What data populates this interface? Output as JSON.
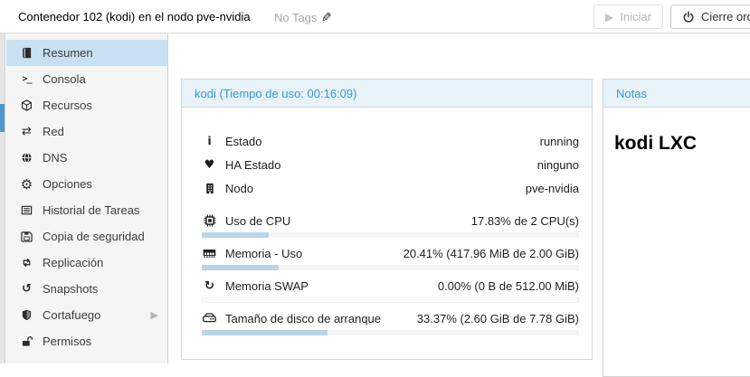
{
  "topbar": {
    "title": "Contenedor 102 (kodi) en el nodo pve-nvidia",
    "tags_label": "No Tags",
    "start_button": "Iniciar",
    "shutdown_button": "Cierre ordenado"
  },
  "sidebar": {
    "items": [
      {
        "label": "Resumen",
        "icon": "book-icon",
        "selected": true
      },
      {
        "label": "Consola",
        "icon": "terminal-icon"
      },
      {
        "label": "Recursos",
        "icon": "cube-icon"
      },
      {
        "label": "Red",
        "icon": "network-arrows-icon"
      },
      {
        "label": "DNS",
        "icon": "globe-icon"
      },
      {
        "label": "Opciones",
        "icon": "gear-icon"
      },
      {
        "label": "Historial de Tareas",
        "icon": "task-list-icon"
      },
      {
        "label": "Copia de seguridad",
        "icon": "floppy-icon"
      },
      {
        "label": "Replicación",
        "icon": "replication-arrows-icon"
      },
      {
        "label": "Snapshots",
        "icon": "history-icon"
      },
      {
        "label": "Cortafuego",
        "icon": "shield-icon",
        "has_submenu": true
      },
      {
        "label": "Permisos",
        "icon": "unlock-icon"
      }
    ]
  },
  "status_panel": {
    "title": "kodi (Tiempo de uso: 00:16:09)",
    "rows": [
      {
        "icon": "info-icon",
        "label": "Estado",
        "value": "running"
      },
      {
        "icon": "heartbeat-icon",
        "label": "HA Estado",
        "value": "ninguno"
      },
      {
        "icon": "building-icon",
        "label": "Nodo",
        "value": "pve-nvidia"
      }
    ],
    "usage_rows": [
      {
        "icon": "cpu-icon",
        "label": "Uso de CPU",
        "value": "17.83% de 2 CPU(s)",
        "percent": 17.83
      },
      {
        "icon": "memory-icon",
        "label": "Memoria - Uso",
        "value": "20.41% (417.96 MiB de 2.00 GiB)",
        "percent": 20.41
      },
      {
        "icon": "swap-icon",
        "label": "Memoria SWAP",
        "value": "0.00% (0 B de 512.00 MiB)",
        "percent": 0
      },
      {
        "icon": "disk-icon",
        "label": "Tamaño de disco de arranque",
        "value": "33.37% (2.60 GiB de 7.78 GiB)",
        "percent": 33.37
      }
    ]
  },
  "notes_panel": {
    "title": "Notas",
    "content": "kodi LXC"
  },
  "colors": {
    "accent_blue": "#3a98d4",
    "selected_item_bg": "#c8e1f2",
    "progress_fill": "#b8d5ea",
    "panel_header_bg": "#e7f2f9",
    "sidebar_bg": "#f5f5f5",
    "tree_thumb_blue": "#4f97cd"
  }
}
